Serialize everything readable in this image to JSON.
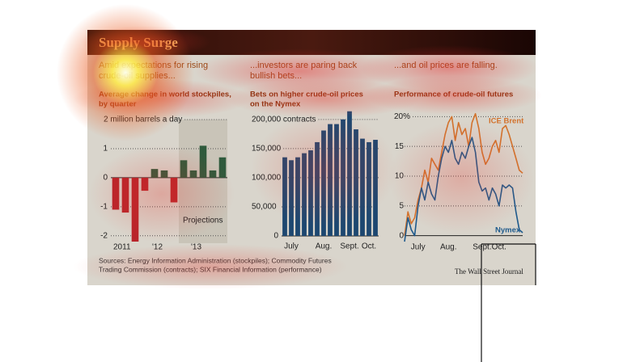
{
  "title": "Supply Surge",
  "source": [
    "Sources: Energy Information Administration (stockpiles); Commodity Futures",
    "Trading Commission (contracts); SIX Financial Information (performance)"
  ],
  "credit": "The Wall Street Journal",
  "chart_data": [
    {
      "type": "bar",
      "heading": [
        "Amid expectations for rising",
        "crude-oil supplies..."
      ],
      "subtitle": [
        "Average change in world stockpiles,",
        "by quarter"
      ],
      "categories": [
        "2011",
        null,
        null,
        null,
        "'12",
        null,
        null,
        null,
        "'13",
        null,
        null,
        null
      ],
      "values": [
        -1.1,
        -1.2,
        -2.2,
        -0.45,
        0.3,
        0.25,
        -0.85,
        0.6,
        0.25,
        1.1,
        0.25,
        0.7
      ],
      "colors": {
        "positive": "#2f5a3c",
        "negative": "#b8242a"
      },
      "annotation": "Projections",
      "ylim": [
        -2.2,
        2
      ],
      "yticks": [
        -2,
        -1,
        0,
        1,
        {
          "value": 2,
          "label": "2 million barrels a day"
        }
      ],
      "grid": true
    },
    {
      "type": "bar",
      "heading": [
        "...investors are paring back",
        "bullish bets..."
      ],
      "subtitle": [
        "Bets on higher crude-oil prices",
        "on the Nymex"
      ],
      "categories": [
        null,
        "July",
        null,
        null,
        null,
        null,
        "Aug.",
        null,
        null,
        null,
        "Sept.",
        null,
        null,
        "Oct.",
        null
      ],
      "values": [
        135000,
        130000,
        135000,
        142000,
        147000,
        161000,
        181000,
        192000,
        192000,
        200000,
        214000,
        183000,
        167000,
        161000,
        165000
      ],
      "color": "#1d4770",
      "ylim": [
        0,
        215000
      ],
      "yticks": [
        0,
        {
          "value": 50000,
          "label": "50,000"
        },
        {
          "value": 100000,
          "label": "100,000"
        },
        {
          "value": 150000,
          "label": "150,000"
        },
        {
          "value": 200000,
          "label": "200,000 contracts"
        }
      ],
      "grid": true
    },
    {
      "type": "line",
      "heading": [
        "...and oil prices are falling."
      ],
      "subtitle": [
        "Performance of crude-oil futures"
      ],
      "categories": [
        null,
        null,
        null,
        null,
        "July",
        null,
        null,
        null,
        null,
        null,
        null,
        null,
        null,
        "Aug.",
        null,
        null,
        null,
        null,
        null,
        null,
        null,
        null,
        null,
        "Sept.",
        null,
        null,
        null,
        null,
        "Oct.",
        null,
        null,
        null,
        null,
        null,
        null,
        null
      ],
      "series": [
        {
          "name": "ICE Brent",
          "color": "#d2722c",
          "values": [
            0,
            4,
            2,
            3,
            6,
            8,
            11,
            9,
            13,
            12,
            11,
            14,
            17,
            19,
            20,
            16,
            19,
            17,
            18,
            15,
            19,
            20.5,
            18,
            14,
            12,
            13,
            15,
            16,
            14,
            18,
            18.5,
            17,
            15,
            13,
            11,
            10.5
          ]
        },
        {
          "name": "Nymex",
          "color": "#1e5a8c",
          "values": [
            -1,
            3,
            1,
            0,
            5,
            8,
            6,
            9,
            7,
            6,
            10,
            13,
            15,
            14,
            16,
            13,
            12,
            14,
            13,
            15,
            16.5,
            14,
            9,
            7.5,
            8,
            6,
            8,
            7,
            5,
            8.5,
            8,
            8.5,
            8,
            4,
            1,
            0.5
          ]
        }
      ],
      "ylim": [
        -1,
        21
      ],
      "yticks": [
        0,
        5,
        10,
        15,
        {
          "value": 20,
          "label": "20%"
        }
      ],
      "grid": true
    }
  ]
}
